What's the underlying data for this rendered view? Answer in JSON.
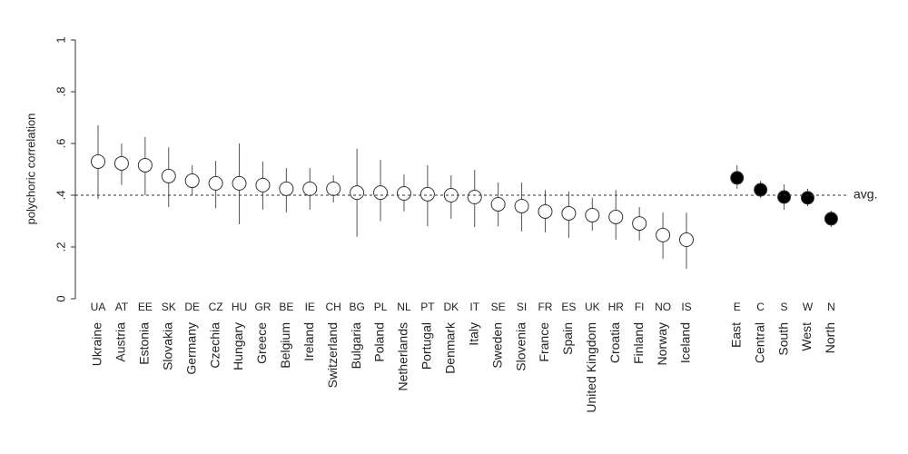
{
  "chart_data": {
    "type": "dot",
    "y_label": "polychoric correlation",
    "ylim": [
      0,
      1
    ],
    "yticks": [
      0,
      {
        "value": 0.2,
        "label": ".2"
      },
      {
        "value": 0.4,
        "label": ".4"
      },
      {
        "value": 0.6,
        "label": ".6"
      },
      {
        "value": 0.8,
        "label": ".8"
      },
      1
    ],
    "reference_line": {
      "value": 0.4,
      "label": "avg."
    },
    "groups": [
      {
        "fill": "#ffffff",
        "codes": [
          "UA",
          "AT",
          "EE",
          "SK",
          "DE",
          "CZ",
          "HU",
          "GR",
          "BE",
          "IE",
          "CH",
          "BG",
          "PL",
          "NL",
          "PT",
          "DK",
          "IT",
          "SE",
          "SI",
          "FR",
          "ES",
          "UK",
          "HR",
          "FI",
          "NO",
          "IS"
        ],
        "categories": [
          "Ukraine",
          "Austria",
          "Estonia",
          "Slovakia",
          "Germany",
          "Czechia",
          "Hungary",
          "Greece",
          "Belgium",
          "Ireland",
          "Switzerland",
          "Bulgaria",
          "Poland",
          "Netherlands",
          "Portugal",
          "Denmark",
          "Italy",
          "Sweden",
          "Slovenia",
          "France",
          "Spain",
          "United Kingdom",
          "Croatia",
          "Finland",
          "Norway",
          "Iceland"
        ],
        "values": [
          0.53,
          0.523,
          0.516,
          0.474,
          0.456,
          0.446,
          0.446,
          0.439,
          0.425,
          0.425,
          0.425,
          0.41,
          0.41,
          0.407,
          0.404,
          0.4,
          0.393,
          0.365,
          0.358,
          0.337,
          0.33,
          0.323,
          0.316,
          0.291,
          0.246,
          0.228
        ],
        "lower": [
          0.385,
          0.44,
          0.4,
          0.354,
          0.4,
          0.35,
          0.288,
          0.344,
          0.333,
          0.344,
          0.372,
          0.239,
          0.3,
          0.337,
          0.28,
          0.309,
          0.277,
          0.28,
          0.26,
          0.256,
          0.235,
          0.263,
          0.228,
          0.225,
          0.154,
          0.116
        ],
        "upper": [
          0.67,
          0.6,
          0.625,
          0.585,
          0.516,
          0.533,
          0.6,
          0.53,
          0.505,
          0.505,
          0.477,
          0.58,
          0.537,
          0.48,
          0.516,
          0.477,
          0.498,
          0.449,
          0.449,
          0.42,
          0.414,
          0.39,
          0.42,
          0.354,
          0.333,
          0.333
        ]
      },
      {
        "fill": "#000000",
        "codes": [
          "E",
          "C",
          "S",
          "W",
          "N"
        ],
        "categories": [
          "East",
          "Central",
          "South",
          "West",
          "North"
        ],
        "values": [
          0.467,
          0.421,
          0.393,
          0.39,
          0.309
        ],
        "lower": [
          0.425,
          0.39,
          0.344,
          0.358,
          0.277
        ],
        "upper": [
          0.516,
          0.456,
          0.442,
          0.425,
          0.34
        ]
      }
    ]
  }
}
